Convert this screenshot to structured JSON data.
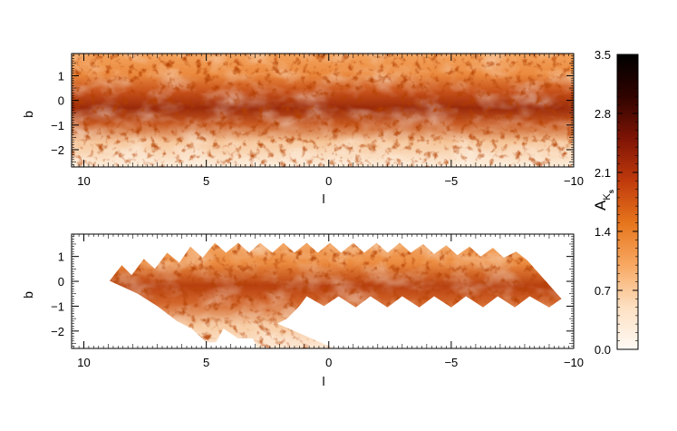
{
  "chart_data": [
    {
      "type": "heatmap",
      "panel": "top",
      "title": "",
      "xlabel": "l",
      "ylabel": "b",
      "xlim": [
        10.5,
        -10
      ],
      "ylim": [
        -2.7,
        1.9
      ],
      "xticks": [
        10,
        5,
        0,
        -5,
        -10
      ],
      "yticks": [
        1,
        0,
        -1,
        -2
      ],
      "xtick_labels": [
        "10",
        "5",
        "0",
        "−5",
        "−10"
      ],
      "ytick_labels": [
        "1",
        "0",
        "−1",
        "−2"
      ],
      "coverage": "full",
      "value_range": [
        0.0,
        3.5
      ]
    },
    {
      "type": "heatmap",
      "panel": "bottom",
      "title": "",
      "xlabel": "l",
      "ylabel": "b",
      "xlim": [
        10.5,
        -10
      ],
      "ylim": [
        -2.7,
        1.9
      ],
      "xticks": [
        10,
        5,
        0,
        -5,
        -10
      ],
      "yticks": [
        1,
        0,
        -1,
        -2
      ],
      "xtick_labels": [
        "10",
        "5",
        "0",
        "−5",
        "−10"
      ],
      "ytick_labels": [
        "1",
        "0",
        "−1",
        "−2"
      ],
      "coverage": "tiled mosaic strip from (l=9, b=0) to (l=-9.5, b=-0.7)",
      "value_range": [
        0.0,
        3.5
      ]
    }
  ],
  "colorbar": {
    "label_main": "A",
    "label_sub": "K",
    "label_sup": "s",
    "range": [
      0.0,
      3.5
    ],
    "ticks": [
      0.0,
      0.7,
      1.4,
      2.1,
      2.8,
      3.5
    ],
    "tick_labels": [
      "0.0",
      "0.7",
      "1.4",
      "2.1",
      "2.8",
      "3.5"
    ],
    "colors": [
      "#fffaf5",
      "#fde0c2",
      "#f8a862",
      "#e6751c",
      "#c03a0c",
      "#7f1405",
      "#300400",
      "#000000"
    ]
  }
}
